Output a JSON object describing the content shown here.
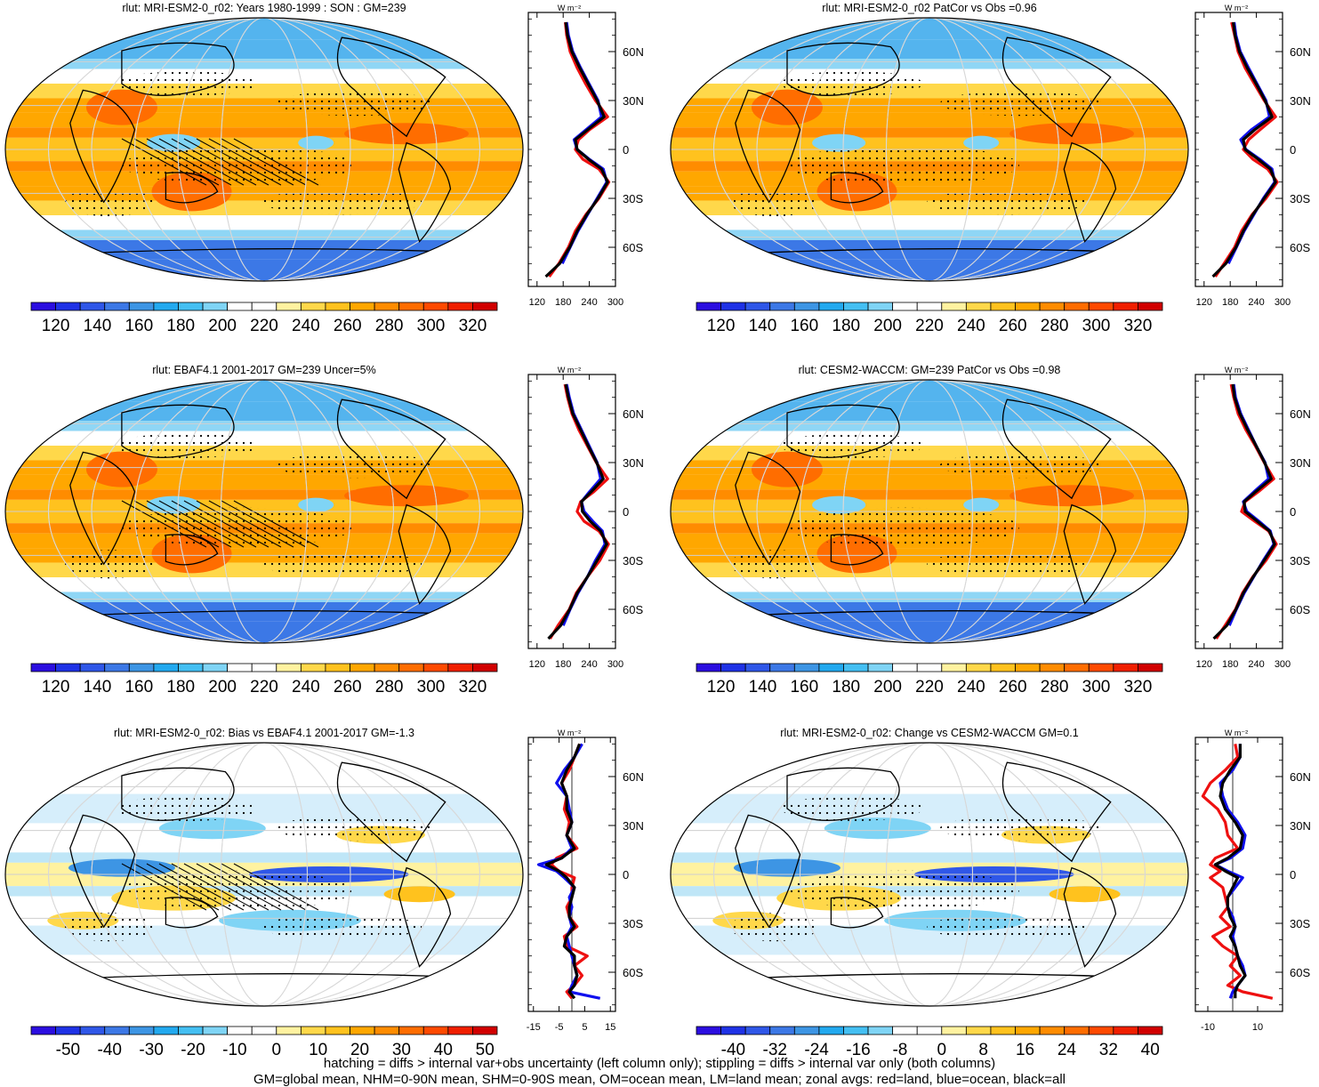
{
  "figure": {
    "footer_line1": "hatching = diffs > internal var+obs uncertainty (left column only); stippling = diffs > internal var only (both columns)",
    "footer_line2": "GM=global mean, NHM=0-90N mean, SHM=0-90S mean, OM=ocean mean, LM=land mean; zonal avgs: red=land, blue=ocean, black=all"
  },
  "chart_data": [
    {
      "type": "heatmap",
      "panel": "top-left",
      "title": "rlut: MRI-ESM2-0_r02: Years 1980-1999 : SON : GM=239",
      "colorbar_ticks": [
        "120",
        "140",
        "160",
        "180",
        "200",
        "220",
        "240",
        "260",
        "280",
        "300",
        "320"
      ],
      "colorbar_range": [
        110,
        330
      ],
      "hatching": true,
      "stippling": true,
      "zonal": {
        "unit_label": "W m⁻²",
        "xticks": [
          "120",
          "180",
          "240",
          "300"
        ],
        "xlim": [
          100,
          300
        ],
        "lat_ticks": [
          "60N",
          "30N",
          "0",
          "30S",
          "60S"
        ],
        "lat": [
          78,
          70,
          60,
          50,
          40,
          30,
          20,
          12,
          6,
          0,
          -6,
          -12,
          -20,
          -30,
          -40,
          -50,
          -60,
          -70,
          -78
        ],
        "land": [
          185,
          188,
          196,
          212,
          232,
          254,
          282,
          240,
          215,
          208,
          225,
          262,
          285,
          262,
          232,
          208,
          192,
          170,
          148
        ],
        "ocean": [
          188,
          192,
          202,
          220,
          240,
          260,
          268,
          232,
          205,
          212,
          240,
          272,
          280,
          258,
          236,
          214,
          196,
          178
        ],
        "all": [
          186,
          190,
          200,
          218,
          238,
          258,
          274,
          236,
          208,
          212,
          238,
          268,
          282,
          260,
          234,
          212,
          195,
          172,
          140
        ]
      }
    },
    {
      "type": "heatmap",
      "panel": "top-right",
      "title": "rlut: MRI-ESM2-0_r02 PatCor vs Obs =0.96",
      "colorbar_ticks": [
        "120",
        "140",
        "160",
        "180",
        "200",
        "220",
        "240",
        "260",
        "280",
        "300",
        "320"
      ],
      "colorbar_range": [
        110,
        330
      ],
      "hatching": false,
      "stippling": true,
      "zonal": {
        "unit_label": "W m⁻²",
        "xticks": [
          "120",
          "180",
          "240",
          "300"
        ],
        "xlim": [
          100,
          300
        ],
        "lat_ticks": [
          "60N",
          "30N",
          "0",
          "30S",
          "60S"
        ],
        "lat": [
          78,
          70,
          60,
          50,
          40,
          30,
          20,
          12,
          6,
          0,
          -6,
          -12,
          -20,
          -30,
          -40,
          -50,
          -60,
          -70,
          -78
        ],
        "land": [
          183,
          190,
          198,
          214,
          236,
          258,
          284,
          248,
          222,
          210,
          232,
          266,
          288,
          262,
          230,
          206,
          190,
          166,
          146
        ],
        "ocean": [
          189,
          193,
          203,
          222,
          242,
          262,
          270,
          228,
          204,
          216,
          248,
          276,
          282,
          256,
          234,
          212,
          194,
          176
        ],
        "all": [
          187,
          191,
          201,
          219,
          240,
          260,
          276,
          236,
          210,
          214,
          244,
          272,
          284,
          258,
          232,
          210,
          193,
          170,
          140
        ]
      }
    },
    {
      "type": "heatmap",
      "panel": "middle-left",
      "title": "rlut: EBAF4.1 2001-2017 GM=239 Uncer=5%",
      "colorbar_ticks": [
        "120",
        "140",
        "160",
        "180",
        "200",
        "220",
        "240",
        "260",
        "280",
        "300",
        "320"
      ],
      "colorbar_range": [
        110,
        330
      ],
      "hatching": true,
      "stippling": true,
      "zonal": {
        "unit_label": "W m⁻²",
        "xticks": [
          "120",
          "180",
          "240",
          "300"
        ],
        "xlim": [
          100,
          300
        ],
        "lat_ticks": [
          "60N",
          "30N",
          "0",
          "30S",
          "60S"
        ],
        "lat": [
          78,
          70,
          60,
          50,
          40,
          30,
          20,
          12,
          6,
          0,
          -6,
          -12,
          -20,
          -30,
          -40,
          -50,
          -60,
          -70,
          -78
        ],
        "land": [
          184,
          190,
          200,
          216,
          236,
          256,
          282,
          250,
          220,
          212,
          228,
          262,
          284,
          264,
          236,
          210,
          194,
          168,
          150
        ],
        "ocean": [
          188,
          194,
          204,
          222,
          240,
          258,
          266,
          240,
          222,
          228,
          248,
          270,
          276,
          254,
          236,
          214,
          196,
          180
        ],
        "all": [
          186,
          192,
          202,
          220,
          238,
          257,
          272,
          244,
          222,
          224,
          242,
          266,
          280,
          258,
          236,
          212,
          195,
          174,
          146
        ]
      }
    },
    {
      "type": "heatmap",
      "panel": "middle-right",
      "title": "rlut: CESM2-WACCM: GM=239 PatCor vs Obs =0.98",
      "colorbar_ticks": [
        "120",
        "140",
        "160",
        "180",
        "200",
        "220",
        "240",
        "260",
        "280",
        "300",
        "320"
      ],
      "colorbar_range": [
        110,
        330
      ],
      "hatching": false,
      "stippling": true,
      "zonal": {
        "unit_label": "W m⁻²",
        "xticks": [
          "120",
          "180",
          "240",
          "300"
        ],
        "xlim": [
          100,
          300
        ],
        "lat_ticks": [
          "60N",
          "30N",
          "0",
          "30S",
          "60S"
        ],
        "lat": [
          78,
          70,
          60,
          50,
          40,
          30,
          20,
          12,
          6,
          0,
          -6,
          -12,
          -20,
          -30,
          -40,
          -50,
          -60,
          -70,
          -78
        ],
        "land": [
          182,
          188,
          198,
          216,
          238,
          258,
          280,
          244,
          214,
          206,
          236,
          268,
          286,
          262,
          232,
          208,
          192,
          168,
          148
        ],
        "ocean": [
          188,
          192,
          204,
          222,
          240,
          260,
          268,
          234,
          210,
          218,
          246,
          272,
          280,
          256,
          234,
          212,
          194,
          178
        ],
        "all": [
          186,
          190,
          202,
          220,
          240,
          259,
          274,
          238,
          212,
          214,
          242,
          270,
          282,
          258,
          233,
          210,
          193,
          172,
          142
        ]
      }
    },
    {
      "type": "heatmap",
      "panel": "bottom-left",
      "title": "rlut: MRI-ESM2-0_r02: Bias vs EBAF4.1 2001-2017  GM=-1.3",
      "colorbar_ticks": [
        "-50",
        "-40",
        "-30",
        "-20",
        "-10",
        "0",
        "10",
        "20",
        "30",
        "40",
        "50"
      ],
      "colorbar_range": [
        -55,
        55
      ],
      "diverging": true,
      "hatching": true,
      "stippling": true,
      "zonal": {
        "unit_label": "W m⁻²",
        "xticks": [
          "-15",
          "-5",
          "5",
          "15"
        ],
        "xlim": [
          -17,
          17
        ],
        "zero_line": 0,
        "lat_ticks": [
          "60N",
          "30N",
          "0",
          "30S",
          "60S"
        ],
        "lat": [
          80,
          72,
          64,
          56,
          48,
          40,
          32,
          24,
          16,
          10,
          6,
          2,
          -2,
          -8,
          -14,
          -20,
          -26,
          -32,
          -38,
          -44,
          -50,
          -56,
          -62,
          -68,
          -72,
          -76
        ],
        "land": [
          3,
          1,
          -1,
          -4,
          -2,
          -3,
          -1,
          -2,
          2,
          -6,
          -8,
          -5,
          1,
          0,
          0,
          -2,
          -1,
          2,
          -3,
          -2,
          6,
          1,
          4,
          1,
          -2,
          0
        ],
        "ocean": [
          4,
          1,
          -3,
          -6,
          -2,
          -1,
          0,
          -2,
          0,
          -4,
          -13,
          -6,
          -3,
          1,
          -1,
          0,
          -1,
          0,
          -2,
          -1,
          0,
          1,
          2,
          0,
          -1,
          11
        ],
        "all": [
          3,
          1,
          -2,
          -4,
          -2,
          -2,
          0,
          -2,
          1,
          -4,
          -10,
          -5,
          -2,
          1,
          0,
          -1,
          -1,
          1,
          -2,
          -3,
          1,
          1,
          2,
          1,
          -1,
          1
        ]
      }
    },
    {
      "type": "heatmap",
      "panel": "bottom-right",
      "title": "rlut: MRI-ESM2-0_r02: Change vs CESM2-WACCM GM=0.1",
      "colorbar_ticks": [
        "-40",
        "-32",
        "-24",
        "-16",
        "-8",
        "0",
        "8",
        "16",
        "24",
        "32",
        "40"
      ],
      "colorbar_range": [
        -44,
        44
      ],
      "diverging": true,
      "hatching": false,
      "stippling": true,
      "zonal": {
        "unit_label": "W m⁻²",
        "xticks": [
          "-10",
          "10"
        ],
        "xlim": [
          -15,
          20
        ],
        "zero_line": 0,
        "lat_ticks": [
          "60N",
          "30N",
          "0",
          "30S",
          "60S"
        ],
        "lat": [
          80,
          72,
          64,
          56,
          48,
          40,
          32,
          24,
          16,
          10,
          6,
          2,
          -2,
          -8,
          -14,
          -20,
          -26,
          -32,
          -38,
          -44,
          -50,
          -56,
          -62,
          -68,
          -72,
          -76
        ],
        "land": [
          1,
          2,
          -3,
          -9,
          -12,
          -6,
          -3,
          -2,
          2,
          -7,
          -9,
          -5,
          -9,
          -4,
          -3,
          -2,
          -5,
          -1,
          -8,
          -4,
          2,
          -1,
          3,
          -2,
          4,
          16
        ],
        "ocean": [
          3,
          3,
          0,
          -5,
          -4,
          -2,
          2,
          5,
          4,
          -1,
          -7,
          -2,
          4,
          1,
          -2,
          -2,
          0,
          1,
          0,
          1,
          2,
          4,
          5,
          2,
          0,
          -1
        ],
        "all": [
          3,
          3,
          -1,
          -4,
          -5,
          -3,
          1,
          4,
          3,
          -2,
          -7,
          -3,
          2,
          0,
          -2,
          -2,
          -1,
          1,
          -1,
          1,
          2,
          3,
          5,
          2,
          1,
          1
        ]
      }
    }
  ]
}
